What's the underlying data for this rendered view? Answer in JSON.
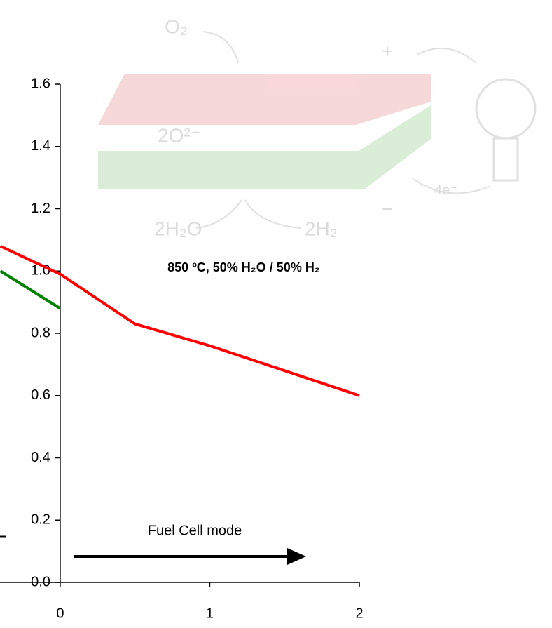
{
  "chart_data": {
    "type": "line",
    "annotation": "850 ºC, 50% H₂O / 50% H₂",
    "mode_label": "Fuel Cell mode",
    "diagram_labels": [
      "O₂",
      "2H₂O",
      "2H₂",
      "4e⁻",
      "2O²⁻",
      "+",
      "−"
    ],
    "xlim": [
      -0.4,
      2
    ],
    "xticks": [
      0,
      1,
      2
    ],
    "ylim": [
      0,
      1.6
    ],
    "yticks": [
      {
        "value": 0,
        "label": "0.0"
      },
      0.2,
      0.4,
      0.6,
      0.8,
      {
        "value": 1,
        "label": "1.0"
      },
      1.2,
      1.4,
      1.6
    ],
    "series": [
      {
        "color": "#ff0000",
        "x": [
          -0.4,
          0,
          0.5,
          1,
          1.5,
          2
        ],
        "values": [
          1.08,
          0.99,
          0.83,
          0.76,
          0.68,
          0.6
        ]
      },
      {
        "color": "#008000",
        "x": [
          -0.4,
          0
        ],
        "values": [
          1.0,
          0.88
        ]
      }
    ]
  }
}
